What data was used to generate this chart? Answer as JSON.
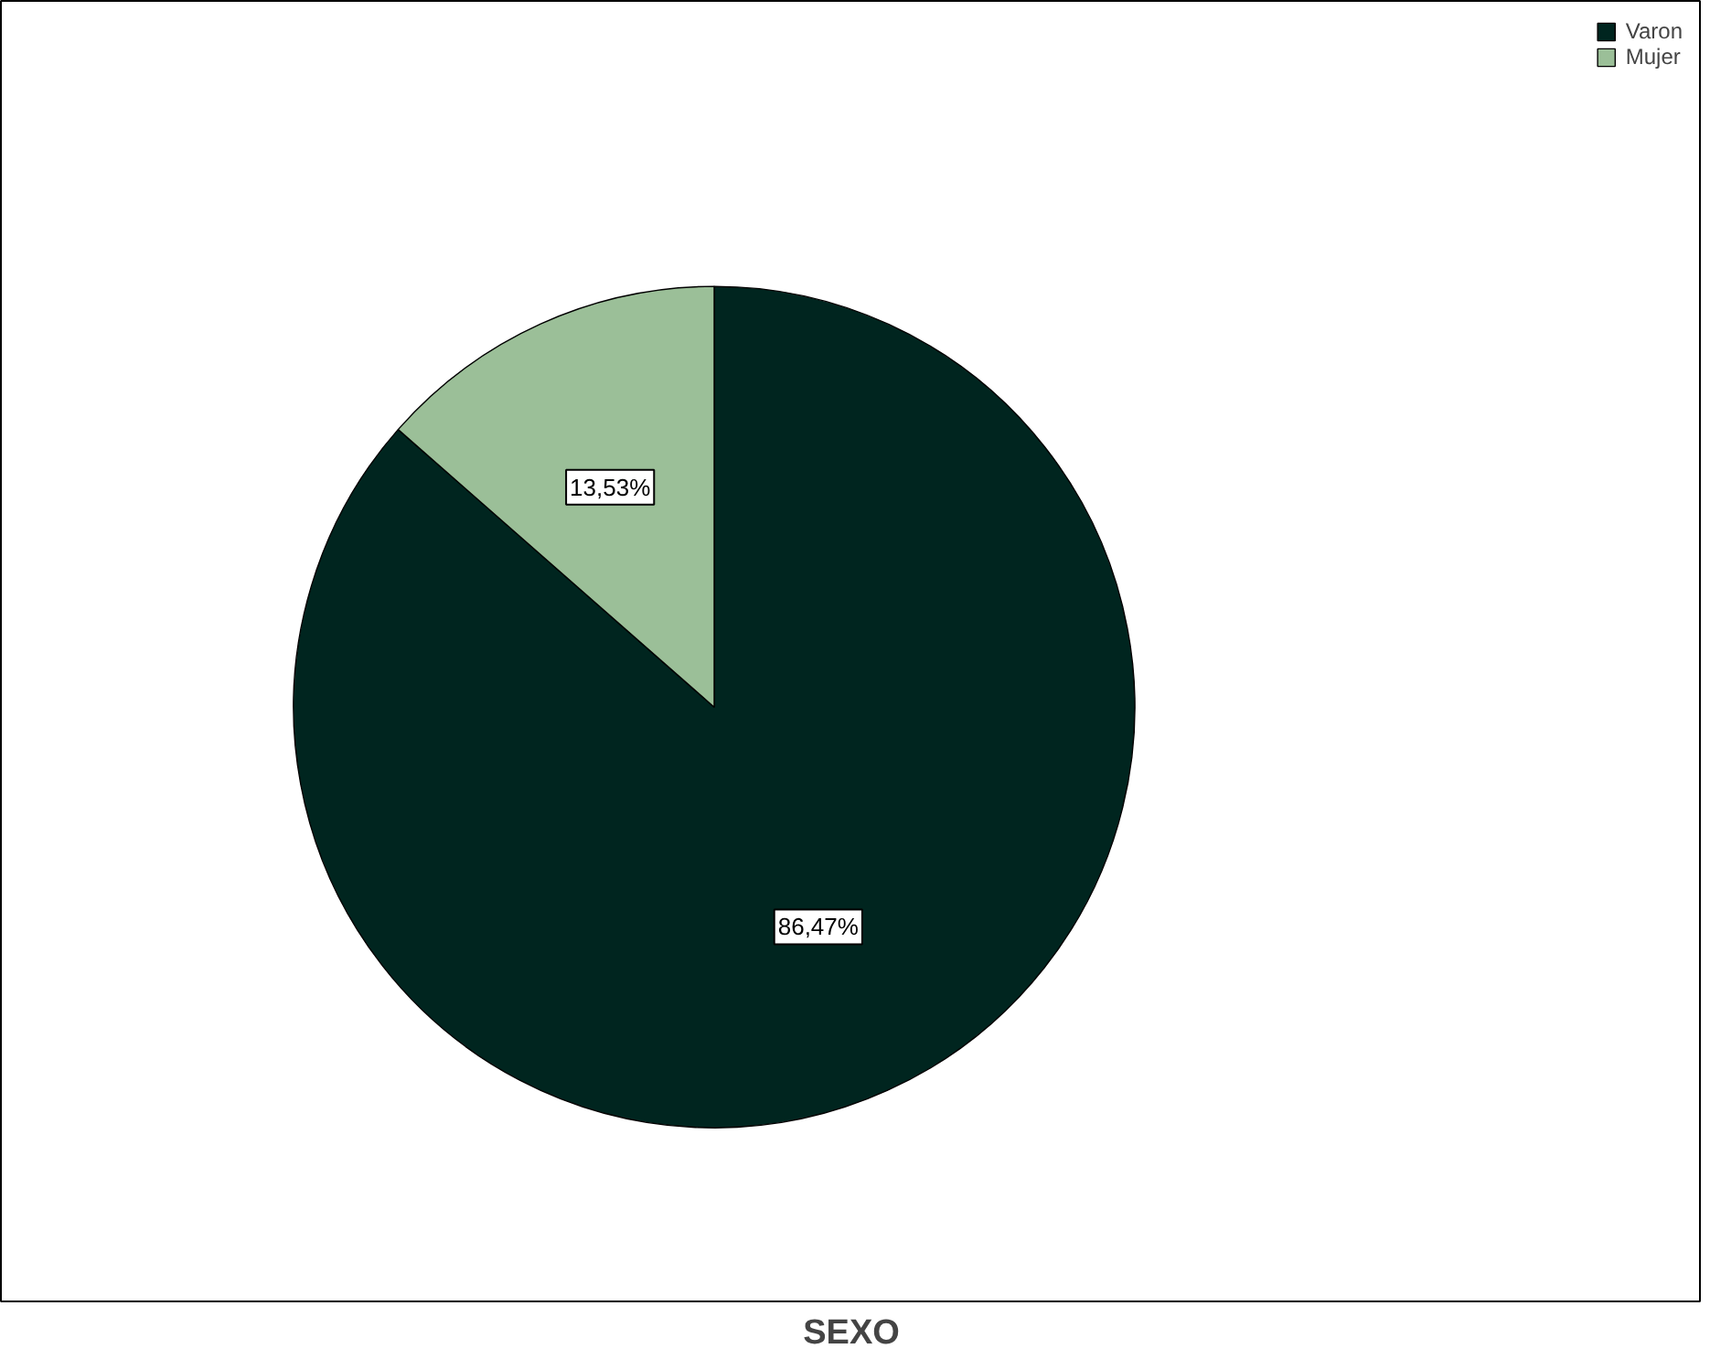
{
  "chart_data": {
    "type": "pie",
    "title": "SEXO",
    "categories": [
      "Varon",
      "Mujer"
    ],
    "values": [
      86.47,
      13.53
    ],
    "colors": [
      "#00251f",
      "#9bbf98"
    ],
    "value_labels": [
      "86,47%",
      "13,53%"
    ],
    "legend": "top right"
  }
}
